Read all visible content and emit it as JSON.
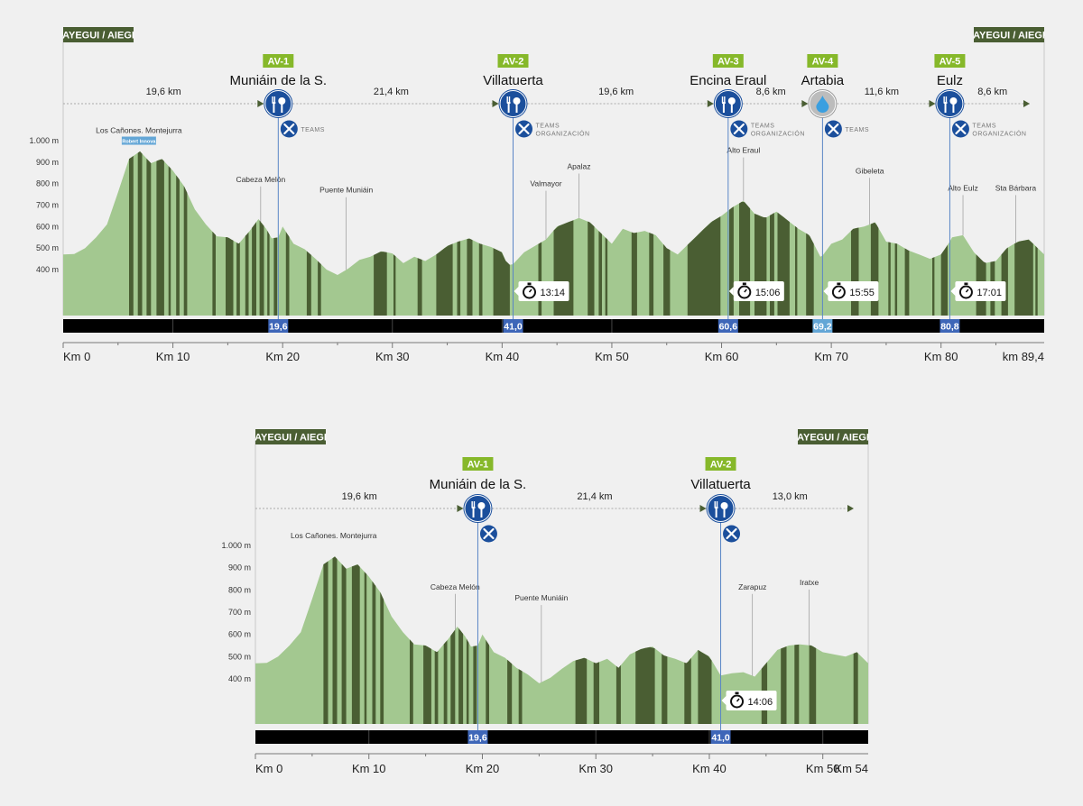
{
  "colors": {
    "background": "#f0f0f0",
    "profile_light": "#a3c890",
    "profile_dark": "#4a5e33",
    "label_green": "#4a5e33",
    "av_badge": "#86b82a",
    "pin_blue": "#1b4f9c",
    "pin_light": "#bcbcbc",
    "drop_blue": "#3a9fe0",
    "bar_black": "#000000",
    "marker_blue": "#3e66b8",
    "marker_light": "#63a6d6",
    "axis_grey": "#777777"
  },
  "chart_data": [
    {
      "id": "long",
      "type": "area",
      "start_label": "AYEGUI / AIEGI",
      "finish_label": "AYEGUI / AIEGI",
      "x_unit": "km",
      "xlim": [
        0,
        89.4
      ],
      "ylim": [
        250,
        1000
      ],
      "y_ticks": [
        {
          "v": 1000,
          "t": "1.000 m"
        },
        {
          "v": 900,
          "t": "900 m"
        },
        {
          "v": 800,
          "t": "800 m"
        },
        {
          "v": 700,
          "t": "700 m"
        },
        {
          "v": 600,
          "t": "600 m"
        },
        {
          "v": 500,
          "t": "500 m"
        },
        {
          "v": 400,
          "t": "400 m"
        }
      ],
      "x_ticks": [
        {
          "v": 0,
          "t": "Km 0"
        },
        {
          "v": 10,
          "t": "Km 10"
        },
        {
          "v": 20,
          "t": "Km 20"
        },
        {
          "v": 30,
          "t": "Km 30"
        },
        {
          "v": 40,
          "t": "Km 40"
        },
        {
          "v": 50,
          "t": "Km 50"
        },
        {
          "v": 60,
          "t": "Km 60"
        },
        {
          "v": 70,
          "t": "Km 70"
        },
        {
          "v": 80,
          "t": "Km 80"
        },
        {
          "v": 89.4,
          "t": "km 89,4"
        }
      ],
      "profile": [
        [
          0,
          470
        ],
        [
          1,
          472
        ],
        [
          2,
          500
        ],
        [
          3,
          550
        ],
        [
          4,
          610
        ],
        [
          5,
          760
        ],
        [
          6,
          915
        ],
        [
          7,
          950
        ],
        [
          8,
          895
        ],
        [
          9,
          915
        ],
        [
          10,
          860
        ],
        [
          11,
          790
        ],
        [
          12,
          680
        ],
        [
          13,
          610
        ],
        [
          14,
          555
        ],
        [
          15,
          550
        ],
        [
          16,
          520
        ],
        [
          17,
          580
        ],
        [
          17.8,
          635
        ],
        [
          18.5,
          590
        ],
        [
          19,
          545
        ],
        [
          19.6,
          550
        ],
        [
          20,
          600
        ],
        [
          21,
          520
        ],
        [
          22,
          495
        ],
        [
          23,
          450
        ],
        [
          24,
          400
        ],
        [
          25,
          375
        ],
        [
          26,
          405
        ],
        [
          27,
          445
        ],
        [
          28,
          460
        ],
        [
          29,
          485
        ],
        [
          30,
          475
        ],
        [
          31,
          430
        ],
        [
          32,
          460
        ],
        [
          33,
          440
        ],
        [
          34,
          470
        ],
        [
          35,
          510
        ],
        [
          36,
          530
        ],
        [
          37,
          545
        ],
        [
          38,
          520
        ],
        [
          39,
          505
        ],
        [
          40,
          480
        ],
        [
          40.5,
          420
        ],
        [
          41,
          425
        ],
        [
          42,
          480
        ],
        [
          43,
          510
        ],
        [
          44,
          540
        ],
        [
          45,
          600
        ],
        [
          46,
          620
        ],
        [
          47,
          640
        ],
        [
          48,
          620
        ],
        [
          49,
          570
        ],
        [
          50,
          520
        ],
        [
          51,
          590
        ],
        [
          52,
          570
        ],
        [
          53,
          580
        ],
        [
          54,
          560
        ],
        [
          55,
          500
        ],
        [
          56,
          470
        ],
        [
          57,
          520
        ],
        [
          58,
          570
        ],
        [
          59,
          620
        ],
        [
          60,
          650
        ],
        [
          61,
          690
        ],
        [
          62,
          720
        ],
        [
          63,
          660
        ],
        [
          64,
          640
        ],
        [
          65,
          670
        ],
        [
          66,
          630
        ],
        [
          67,
          590
        ],
        [
          68,
          560
        ],
        [
          69,
          460
        ],
        [
          69.2,
          465
        ],
        [
          70,
          520
        ],
        [
          71,
          540
        ],
        [
          72,
          590
        ],
        [
          73,
          600
        ],
        [
          74,
          620
        ],
        [
          75,
          530
        ],
        [
          76,
          520
        ],
        [
          77,
          490
        ],
        [
          78,
          470
        ],
        [
          79,
          450
        ],
        [
          80,
          470
        ],
        [
          80.8,
          530
        ],
        [
          81,
          550
        ],
        [
          82,
          560
        ],
        [
          83,
          480
        ],
        [
          84,
          430
        ],
        [
          85,
          440
        ],
        [
          86,
          500
        ],
        [
          87,
          530
        ],
        [
          88,
          540
        ],
        [
          89.4,
          470
        ]
      ],
      "dark_bands": [
        [
          6,
          6.4
        ],
        [
          6.8,
          7.2
        ],
        [
          7.6,
          8
        ],
        [
          8.5,
          9.2
        ],
        [
          9.6,
          9.8
        ],
        [
          10.3,
          10.6
        ],
        [
          11,
          11.3
        ],
        [
          13.6,
          13.9
        ],
        [
          14.8,
          15.5
        ],
        [
          15.8,
          16.1
        ],
        [
          16.6,
          16.9
        ],
        [
          17.2,
          17.6
        ],
        [
          17.9,
          18.3
        ],
        [
          18.6,
          18.8
        ],
        [
          19.2,
          19.5
        ],
        [
          20.3,
          20.6
        ],
        [
          22.2,
          22.6
        ],
        [
          23.2,
          23.5
        ],
        [
          28.3,
          29.5
        ],
        [
          30.1,
          30.3
        ],
        [
          32.3,
          32.7
        ],
        [
          34,
          35.5
        ],
        [
          35.9,
          36.2
        ],
        [
          36.8,
          37.3
        ],
        [
          37.9,
          38.2
        ],
        [
          39.2,
          40.7
        ],
        [
          43.3,
          43.6
        ],
        [
          44.7,
          46.5
        ],
        [
          47.8,
          48.4
        ],
        [
          48.8,
          49.1
        ],
        [
          49.4,
          49.6
        ],
        [
          51.8,
          52.3
        ],
        [
          53.4,
          53.8
        ],
        [
          54.7,
          55.3
        ],
        [
          56.9,
          59.9
        ],
        [
          60.7,
          61.1
        ],
        [
          61.6,
          62.6
        ],
        [
          63,
          64.1
        ],
        [
          64.4,
          64.8
        ],
        [
          65.1,
          66.2
        ],
        [
          66.7,
          66.9
        ],
        [
          67.7,
          68.4
        ],
        [
          71.8,
          72.5
        ],
        [
          73.6,
          74.3
        ],
        [
          75.2,
          75.4
        ],
        [
          75.8,
          76
        ],
        [
          76.7,
          77.1
        ],
        [
          79.2,
          79.4
        ],
        [
          80,
          80.6
        ],
        [
          83.2,
          84.1
        ],
        [
          84.5,
          84.9
        ],
        [
          85.5,
          86.1
        ],
        [
          86.7,
          88.4
        ],
        [
          88.6,
          88.8
        ]
      ],
      "places": [
        {
          "km": 6.9,
          "alt": 960,
          "label": "Los Cañones. Montejurra",
          "badge": "Robert Innova",
          "leader": false
        },
        {
          "km": 18,
          "alt": 640,
          "label": "Cabeza Melón",
          "leader": true
        },
        {
          "km": 25.8,
          "alt": 590,
          "label": "Puente Muniáin",
          "leader": true
        },
        {
          "km": 44,
          "alt": 620,
          "label": "Valmayor",
          "leader": true
        },
        {
          "km": 47,
          "alt": 700,
          "label": "Apalaz",
          "leader": true
        },
        {
          "km": 62,
          "alt": 775,
          "label": "Alto Eraul",
          "leader": true
        },
        {
          "km": 73.5,
          "alt": 680,
          "label": "Gibeleta",
          "leader": true
        },
        {
          "km": 82,
          "alt": 600,
          "label": "Alto Eulz",
          "leader": true
        },
        {
          "km": 86.8,
          "alt": 600,
          "label": "Sta Bárbara",
          "leader": true
        }
      ],
      "checkpoints": [
        {
          "km": 19.6,
          "km_label": "19,6",
          "code": "AV-1",
          "name": "Muniáin de la S.",
          "icon": "food-icon",
          "service": "TEAMS",
          "time": "",
          "marker": "blue"
        },
        {
          "km": 41.0,
          "km_label": "41,0",
          "code": "AV-2",
          "name": "Villatuerta",
          "icon": "food-icon",
          "service": "TEAMS ORGANIZACIÓN",
          "time": "13:14",
          "marker": "blue"
        },
        {
          "km": 60.6,
          "km_label": "60,6",
          "code": "AV-3",
          "name": "Encina Eraul",
          "icon": "food-icon",
          "service": "TEAMS ORGANIZACIÓN",
          "time": "15:06",
          "marker": "blue"
        },
        {
          "km": 69.2,
          "km_label": "69,2",
          "code": "AV-4",
          "name": "Artabia",
          "icon": "water-drop-icon",
          "service": "TEAMS",
          "time": "15:55",
          "marker": "light"
        },
        {
          "km": 80.8,
          "km_label": "80,8",
          "code": "AV-5",
          "name": "Eulz",
          "icon": "food-icon",
          "service": "TEAMS ORGANIZACIÓN",
          "time": "17:01",
          "marker": "blue"
        }
      ],
      "segments": [
        {
          "from": 0,
          "to": 19.6,
          "label": "19,6 km"
        },
        {
          "from": 19.6,
          "to": 41.0,
          "label": "21,4 km"
        },
        {
          "from": 41.0,
          "to": 60.6,
          "label": "19,6 km"
        },
        {
          "from": 60.6,
          "to": 69.2,
          "label": "8,6 km"
        },
        {
          "from": 69.2,
          "to": 80.8,
          "label": "11,6 km"
        },
        {
          "from": 80.8,
          "to": 89.4,
          "label": "8,6 km"
        }
      ]
    },
    {
      "id": "short",
      "type": "area",
      "start_label": "AYEGUI / AIEGI",
      "finish_label": "AYEGUI / AIEGI",
      "x_unit": "km",
      "xlim": [
        0,
        54
      ],
      "ylim": [
        250,
        1000
      ],
      "y_ticks": [
        {
          "v": 1000,
          "t": "1.000 m"
        },
        {
          "v": 900,
          "t": "900 m"
        },
        {
          "v": 800,
          "t": "800 m"
        },
        {
          "v": 700,
          "t": "700 m"
        },
        {
          "v": 600,
          "t": "600 m"
        },
        {
          "v": 500,
          "t": "500 m"
        },
        {
          "v": 400,
          "t": "400 m"
        }
      ],
      "x_ticks": [
        {
          "v": 0,
          "t": "Km 0"
        },
        {
          "v": 10,
          "t": "Km 10"
        },
        {
          "v": 20,
          "t": "Km 20"
        },
        {
          "v": 30,
          "t": "Km 30"
        },
        {
          "v": 40,
          "t": "Km 40"
        },
        {
          "v": 50,
          "t": "Km 50"
        },
        {
          "v": 54,
          "t": "Km 54"
        }
      ],
      "profile": [
        [
          0,
          470
        ],
        [
          1,
          472
        ],
        [
          2,
          500
        ],
        [
          3,
          550
        ],
        [
          4,
          610
        ],
        [
          5,
          760
        ],
        [
          6,
          915
        ],
        [
          7,
          950
        ],
        [
          8,
          895
        ],
        [
          9,
          915
        ],
        [
          10,
          860
        ],
        [
          11,
          790
        ],
        [
          12,
          680
        ],
        [
          13,
          610
        ],
        [
          14,
          555
        ],
        [
          15,
          550
        ],
        [
          16,
          520
        ],
        [
          17,
          580
        ],
        [
          17.8,
          635
        ],
        [
          18.5,
          590
        ],
        [
          19,
          545
        ],
        [
          19.6,
          550
        ],
        [
          20,
          600
        ],
        [
          21,
          520
        ],
        [
          22,
          495
        ],
        [
          23,
          450
        ],
        [
          24,
          420
        ],
        [
          25,
          380
        ],
        [
          26,
          405
        ],
        [
          27,
          445
        ],
        [
          28,
          480
        ],
        [
          29,
          495
        ],
        [
          30,
          470
        ],
        [
          31,
          490
        ],
        [
          32,
          450
        ],
        [
          33,
          510
        ],
        [
          34,
          535
        ],
        [
          35,
          545
        ],
        [
          36,
          505
        ],
        [
          37,
          490
        ],
        [
          38,
          470
        ],
        [
          39,
          530
        ],
        [
          40,
          500
        ],
        [
          41,
          415
        ],
        [
          42,
          425
        ],
        [
          43,
          430
        ],
        [
          44,
          410
        ],
        [
          45,
          470
        ],
        [
          46,
          530
        ],
        [
          47,
          550
        ],
        [
          48,
          555
        ],
        [
          49,
          550
        ],
        [
          50,
          520
        ],
        [
          51,
          510
        ],
        [
          52,
          500
        ],
        [
          53,
          520
        ],
        [
          54,
          470
        ]
      ],
      "dark_bands": [
        [
          6,
          6.4
        ],
        [
          6.8,
          7.2
        ],
        [
          7.6,
          8
        ],
        [
          8.5,
          9.2
        ],
        [
          9.6,
          9.8
        ],
        [
          10.3,
          10.6
        ],
        [
          11,
          11.3
        ],
        [
          13.6,
          13.9
        ],
        [
          14.8,
          15.5
        ],
        [
          15.8,
          16.1
        ],
        [
          16.6,
          16.9
        ],
        [
          17.2,
          17.6
        ],
        [
          17.9,
          18.3
        ],
        [
          18.6,
          18.8
        ],
        [
          19.2,
          19.5
        ],
        [
          20.3,
          20.6
        ],
        [
          22.2,
          22.6
        ],
        [
          23.2,
          23.5
        ],
        [
          28.2,
          29.2
        ],
        [
          29.8,
          30.3
        ],
        [
          31.8,
          32.2
        ],
        [
          33.5,
          35.2
        ],
        [
          35.8,
          36.3
        ],
        [
          37.8,
          38.4
        ],
        [
          39,
          40.2
        ],
        [
          44.6,
          45.1
        ],
        [
          46.3,
          46.8
        ],
        [
          47.5,
          47.9
        ],
        [
          48.8,
          49.4
        ],
        [
          52.7,
          53.1
        ]
      ],
      "places": [
        {
          "km": 6.9,
          "alt": 960,
          "label": "Los Cañones. Montejurra",
          "leader": false
        },
        {
          "km": 17.6,
          "alt": 640,
          "label": "Cabeza Melón",
          "leader": true
        },
        {
          "km": 25.2,
          "alt": 590,
          "label": "Puente Muniáin",
          "leader": true
        },
        {
          "km": 43.8,
          "alt": 640,
          "label": "Zarapuz",
          "leader": true
        },
        {
          "km": 48.8,
          "alt": 660,
          "label": "Iratxe",
          "leader": true
        }
      ],
      "checkpoints": [
        {
          "km": 19.6,
          "km_label": "19,6",
          "code": "AV-1",
          "name": "Muniáin de la S.",
          "icon": "food-icon",
          "service": "",
          "time": "",
          "marker": "blue"
        },
        {
          "km": 41.0,
          "km_label": "41,0",
          "code": "AV-2",
          "name": "Villatuerta",
          "icon": "food-icon",
          "service": "",
          "time": "14:06",
          "marker": "blue"
        }
      ],
      "segments": [
        {
          "from": 0,
          "to": 19.6,
          "label": "19,6 km"
        },
        {
          "from": 19.6,
          "to": 41.0,
          "label": "21,4 km"
        },
        {
          "from": 41.0,
          "to": 54,
          "label": "13,0 km"
        }
      ]
    }
  ]
}
